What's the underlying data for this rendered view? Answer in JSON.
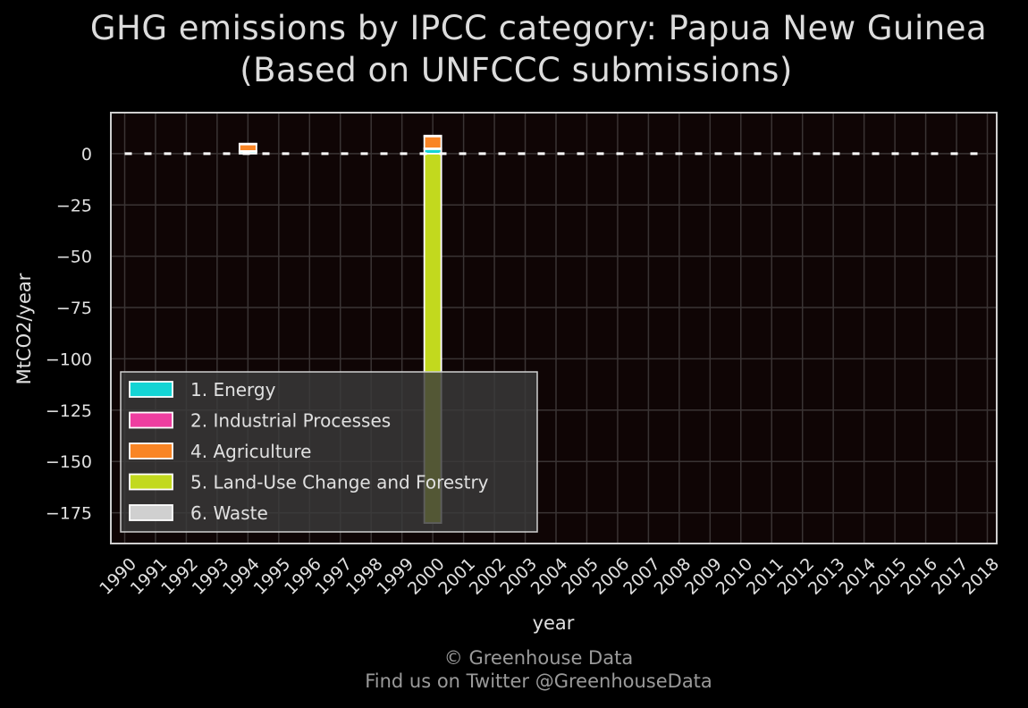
{
  "title_line1": "GHG emissions by IPCC category: Papua New Guinea",
  "title_line2": "(Based on UNFCCC submissions)",
  "footer_line1": "© Greenhouse Data",
  "footer_line2": "Find us on Twitter @GreenhouseData",
  "chart_data": {
    "type": "bar",
    "stacked": true,
    "xlabel": "year",
    "ylabel": "MtCO2/year",
    "categories": [
      "1990",
      "1991",
      "1992",
      "1993",
      "1994",
      "1995",
      "1996",
      "1997",
      "1998",
      "1999",
      "2000",
      "2001",
      "2002",
      "2003",
      "2004",
      "2005",
      "2006",
      "2007",
      "2008",
      "2009",
      "2010",
      "2011",
      "2012",
      "2013",
      "2014",
      "2015",
      "2016",
      "2017",
      "2018"
    ],
    "ylim": [
      -190,
      20
    ],
    "yticks": [
      0,
      -25,
      -50,
      -75,
      -100,
      -125,
      -150,
      -175
    ],
    "grid": true,
    "legend_position": "lower-left",
    "series": [
      {
        "name": "1. Energy",
        "color": "#14d4d4",
        "values": [
          null,
          null,
          null,
          null,
          1.2,
          null,
          null,
          null,
          null,
          null,
          2.5,
          null,
          null,
          null,
          null,
          null,
          null,
          null,
          null,
          null,
          null,
          null,
          null,
          null,
          null,
          null,
          null,
          null,
          null
        ]
      },
      {
        "name": "2. Industrial Processes",
        "color": "#ee3ea0",
        "values": [
          null,
          null,
          null,
          null,
          0.1,
          null,
          null,
          null,
          null,
          null,
          0.1,
          null,
          null,
          null,
          null,
          null,
          null,
          null,
          null,
          null,
          null,
          null,
          null,
          null,
          null,
          null,
          null,
          null,
          null
        ]
      },
      {
        "name": "4. Agriculture",
        "color": "#f98525",
        "values": [
          null,
          null,
          null,
          null,
          3.5,
          null,
          null,
          null,
          null,
          null,
          6,
          null,
          null,
          null,
          null,
          null,
          null,
          null,
          null,
          null,
          null,
          null,
          null,
          null,
          null,
          null,
          null,
          null,
          null
        ]
      },
      {
        "name": "5. Land-Use Change and Forestry",
        "color": "#c2d91e",
        "values": [
          null,
          null,
          null,
          null,
          null,
          null,
          null,
          null,
          null,
          null,
          -180,
          null,
          null,
          null,
          null,
          null,
          null,
          null,
          null,
          null,
          null,
          null,
          null,
          null,
          null,
          null,
          null,
          null,
          null
        ]
      },
      {
        "name": "6. Waste",
        "color": "#d0d0d0",
        "values": [
          null,
          null,
          null,
          null,
          0.1,
          null,
          null,
          null,
          null,
          null,
          0.2,
          null,
          null,
          null,
          null,
          null,
          null,
          null,
          null,
          null,
          null,
          null,
          null,
          null,
          null,
          null,
          null,
          null,
          null
        ]
      }
    ],
    "net_total_marker": "dashed white line"
  }
}
